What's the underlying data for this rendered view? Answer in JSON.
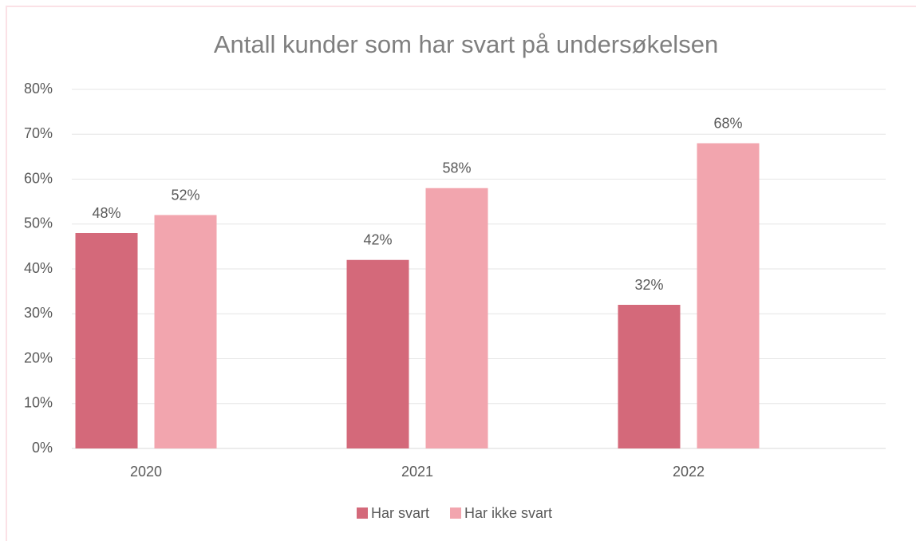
{
  "chart_data": {
    "type": "bar",
    "title": "Antall kunder som har svart på undersøkelsen",
    "categories": [
      "2020",
      "2021",
      "2022"
    ],
    "series": [
      {
        "name": "Har svart",
        "color": "#d4697a",
        "values": [
          48,
          42,
          32
        ],
        "value_labels": [
          "48%",
          "42%",
          "32%"
        ]
      },
      {
        "name": "Har ikke svart",
        "color": "#f2a5ae",
        "values": [
          52,
          58,
          68
        ],
        "value_labels": [
          "52%",
          "58%",
          "68%"
        ]
      }
    ],
    "ylim": [
      0,
      80
    ],
    "yticks": [
      {
        "value": 0,
        "label": "0%"
      },
      {
        "value": 10,
        "label": "10%"
      },
      {
        "value": 20,
        "label": "20%"
      },
      {
        "value": 30,
        "label": "30%"
      },
      {
        "value": 40,
        "label": "40%"
      },
      {
        "value": 50,
        "label": "50%"
      },
      {
        "value": 60,
        "label": "60%"
      },
      {
        "value": 70,
        "label": "70%"
      },
      {
        "value": 80,
        "label": "80%"
      }
    ],
    "grid": true,
    "legend": "bottom"
  }
}
